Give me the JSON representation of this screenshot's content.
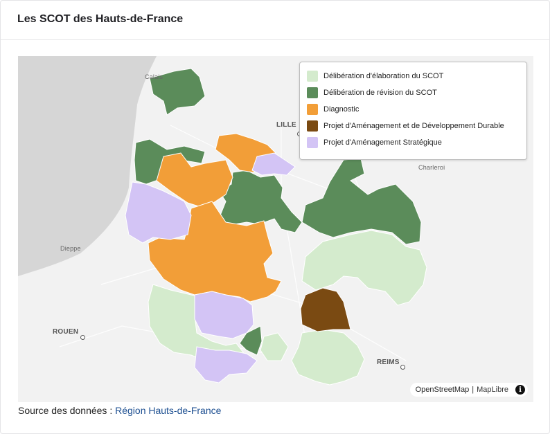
{
  "card": {
    "title": "Les SCOT des Hauts-de-France"
  },
  "legend": {
    "items": [
      {
        "label": "Délibération d'élaboration du SCOT",
        "color": "#d4ebcd"
      },
      {
        "label": "Délibération de révision du SCOT",
        "color": "#5b8c5a"
      },
      {
        "label": "Diagnostic",
        "color": "#f29e38"
      },
      {
        "label": "Projet d'Aménagement et de Développement Durable",
        "color": "#7a4a12"
      },
      {
        "label": "Projet d'Aménagement Stratégique",
        "color": "#d3c4f5"
      }
    ]
  },
  "cities": {
    "calais": "Calais",
    "lille": "LILLE",
    "charleroi": "Charleroi",
    "dieppe": "Dieppe",
    "rouen": "ROUEN",
    "reims": "REIMS"
  },
  "attribution": {
    "osm": "OpenStreetMap",
    "separator": "|",
    "maplibre": "MapLibre",
    "info": "i"
  },
  "source": {
    "prefix": "Source des données : ",
    "link": "Région Hauts-de-France"
  }
}
